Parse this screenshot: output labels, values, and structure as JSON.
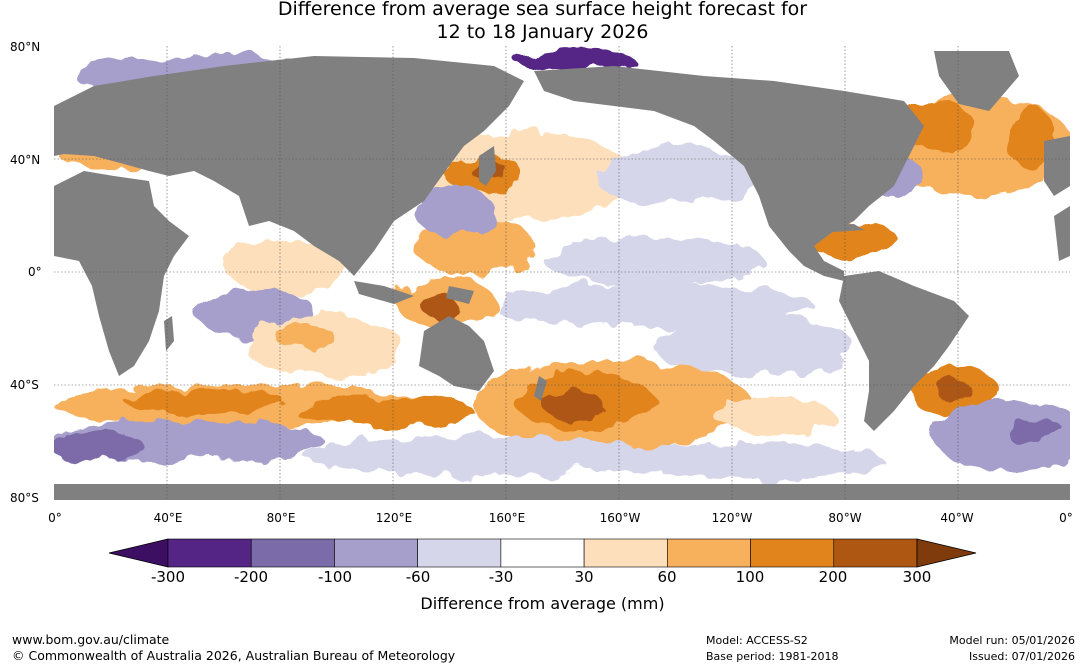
{
  "title_line1": "Difference from average sea surface height forecast for",
  "title_line2": "12 to 18 January 2026",
  "lat_labels": [
    "80°N",
    "40°N",
    "0°",
    "40°S",
    "80°S"
  ],
  "lon_labels": [
    "0°",
    "40°E",
    "80°E",
    "120°E",
    "160°E",
    "160°W",
    "120°W",
    "80°W",
    "40°W",
    "0°"
  ],
  "colorbar": {
    "ticks": [
      "-300",
      "-200",
      "-100",
      "-60",
      "-30",
      "30",
      "60",
      "100",
      "200",
      "300"
    ],
    "colors": [
      "#3d0f63",
      "#552586",
      "#7b6ba9",
      "#a79fcb",
      "#d6d6ea",
      "#ffffff",
      "#fde0bb",
      "#f7b05c",
      "#e1841b",
      "#ae5713",
      "#7f3b0b"
    ],
    "title": "Difference from average (mm)"
  },
  "footer": {
    "url": "www.bom.gov.au/climate",
    "copyright": "© Commonwealth of Australia 2026, Australian Bureau of Meteorology",
    "model": "Model: ACCESS-S2",
    "base_period": "Base period: 1981-2018",
    "model_run": "Model run: 05/01/2026",
    "issued": "Issued: 07/01/2026"
  },
  "land_color": "#808080"
}
